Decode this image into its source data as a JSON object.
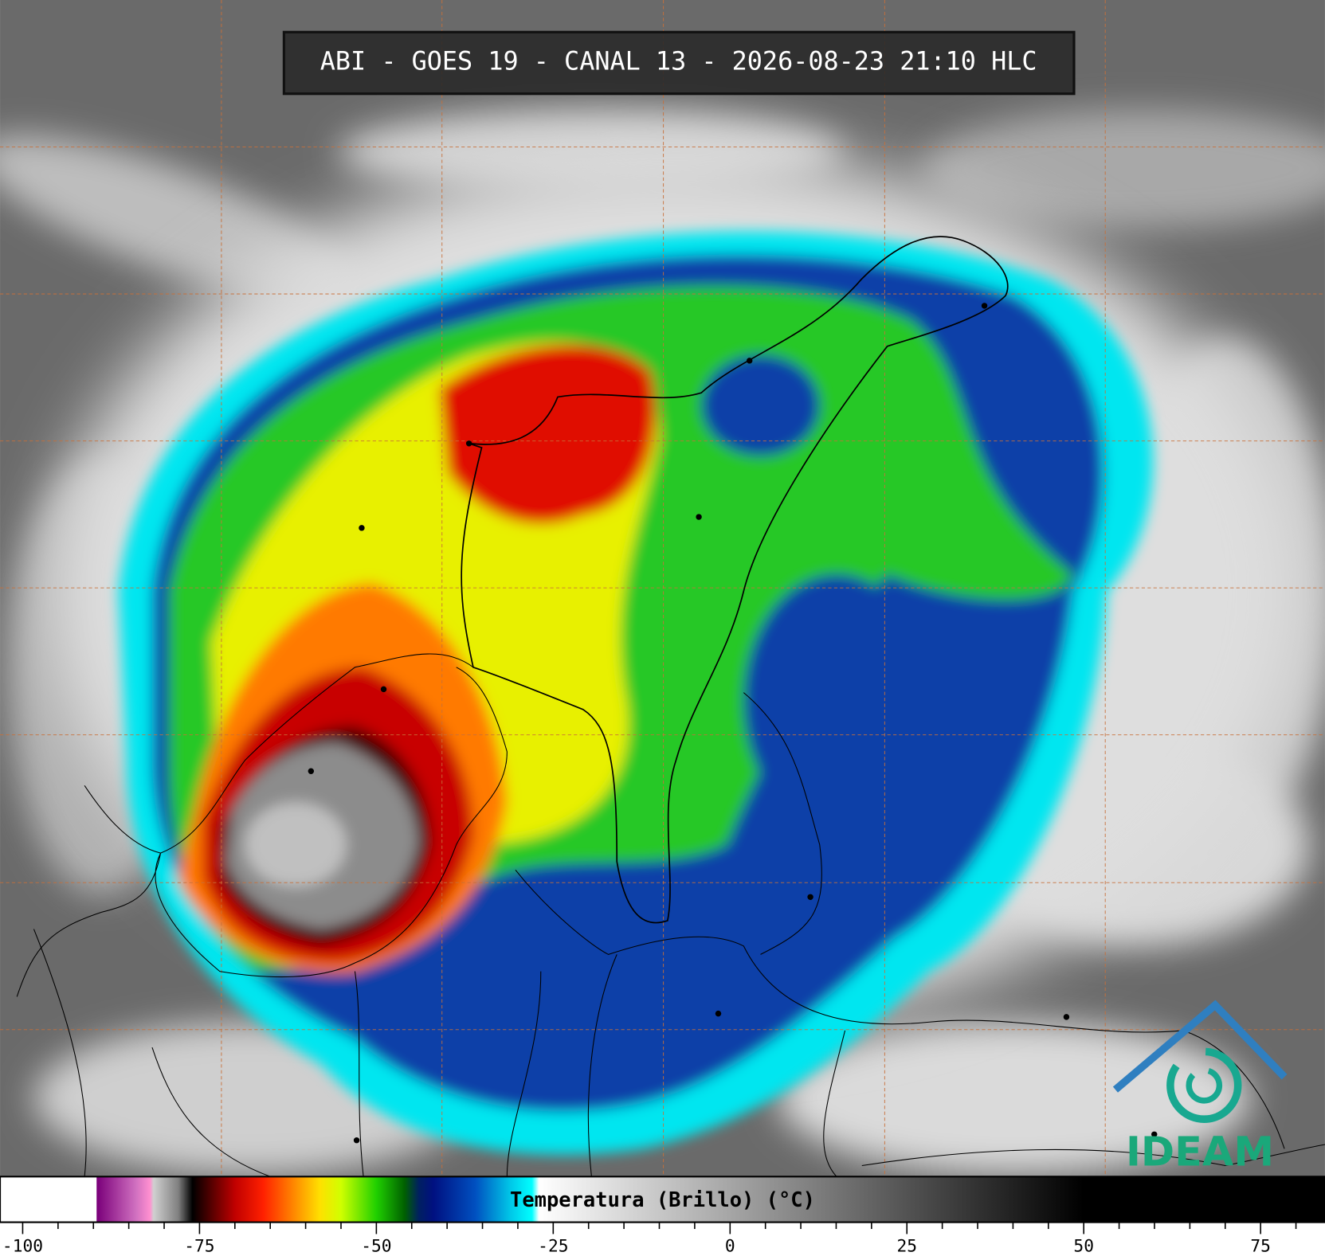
{
  "header": {
    "title": "ABI - GOES 19 - CANAL 13 - 2026-08-23 21:10 HLC"
  },
  "logo": {
    "text": "IDEAM"
  },
  "colorbar": {
    "label": "Temperatura (Brillo) (°C)",
    "xlim": [
      -103.2,
      84.1
    ],
    "xticks": [
      -100,
      -75,
      -50,
      -25,
      0,
      25,
      50,
      75
    ],
    "minor_xticks": [
      -95,
      -90,
      -85,
      -80,
      -70,
      -65,
      -60,
      -55,
      -45,
      -40,
      -35,
      -30,
      -20,
      -15,
      -10,
      -5,
      5,
      10,
      15,
      20,
      30,
      35,
      40,
      45,
      55,
      60,
      65,
      70,
      80
    ],
    "colormap": [
      {
        "value": -89.6,
        "color": "#ffffff"
      },
      {
        "value": -89.5,
        "color": "#7a007a"
      },
      {
        "value": -84,
        "color": "#d070c0"
      },
      {
        "value": -82,
        "color": "#ff90d0"
      },
      {
        "value": -81.5,
        "color": "#d0d0d0"
      },
      {
        "value": -78,
        "color": "#808080"
      },
      {
        "value": -76,
        "color": "#000000"
      },
      {
        "value": -74,
        "color": "#400000"
      },
      {
        "value": -70,
        "color": "#c00000"
      },
      {
        "value": -66,
        "color": "#ff2000"
      },
      {
        "value": -62,
        "color": "#ff8000"
      },
      {
        "value": -58,
        "color": "#ffe000"
      },
      {
        "value": -55,
        "color": "#d0ff00"
      },
      {
        "value": -50,
        "color": "#20d000"
      },
      {
        "value": -46,
        "color": "#006000"
      },
      {
        "value": -44,
        "color": "#002060"
      },
      {
        "value": -42,
        "color": "#001080"
      },
      {
        "value": -36,
        "color": "#0050c0"
      },
      {
        "value": -31,
        "color": "#00c8e8"
      },
      {
        "value": -28,
        "color": "#00ffff"
      },
      {
        "value": -27,
        "color": "#ffffff"
      },
      {
        "value": 50,
        "color": "#000000"
      }
    ]
  }
}
